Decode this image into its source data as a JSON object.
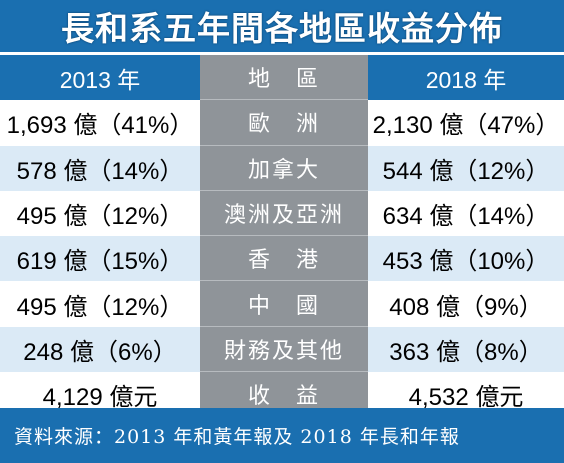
{
  "title": "長和系五年間各地區收益分佈",
  "header": {
    "left": "2013 年",
    "mid": "地　區",
    "right": "2018 年"
  },
  "rows": [
    {
      "left": "1,693 億（41%）",
      "region": "歐　洲",
      "right": "2,130 億（47%）"
    },
    {
      "left": "578 億（14%）",
      "region": "加拿大",
      "right": "544 億（12%）"
    },
    {
      "left": "495 億（12%）",
      "region": "澳洲及亞洲",
      "right": "634 億（14%）"
    },
    {
      "left": "619 億（15%）",
      "region": "香　港",
      "right": "453 億（10%）"
    },
    {
      "left": "495 億（12%）",
      "region": "中　國",
      "right": "408 億（9%）"
    },
    {
      "left": "248 億（6%）",
      "region": "財務及其他",
      "right": "363 億（8%）"
    },
    {
      "left": "4,129 億元",
      "region": "收　益",
      "right": "4,532 億元"
    }
  ],
  "footer": "資料來源：2013 年和黃年報及 2018 年長和年報",
  "colors": {
    "header_blue": "#1a6fb0",
    "row_alt": "#dbeaf6",
    "mid_gray": "#8f9499"
  }
}
